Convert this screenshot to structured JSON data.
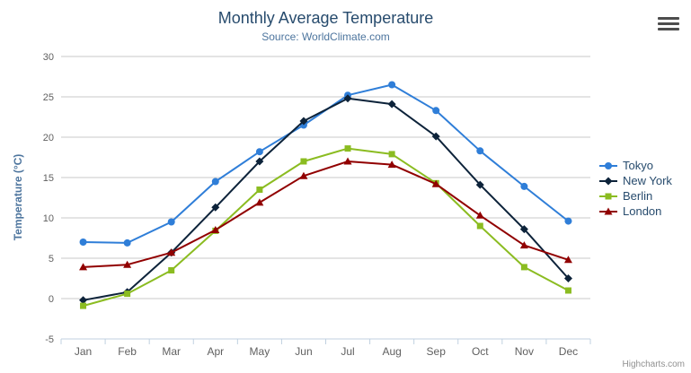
{
  "header": {
    "title": "Monthly Average Temperature",
    "subtitle": "Source: WorldClimate.com"
  },
  "credits_label": "Highcharts.com",
  "menu_icon": "hamburger-icon",
  "chart_data": {
    "type": "line",
    "title": "Monthly Average Temperature",
    "subtitle": "Source: WorldClimate.com",
    "xlabel": "",
    "ylabel": "Temperature (°C)",
    "categories": [
      "Jan",
      "Feb",
      "Mar",
      "Apr",
      "May",
      "Jun",
      "Jul",
      "Aug",
      "Sep",
      "Oct",
      "Nov",
      "Dec"
    ],
    "ylim": [
      -5,
      30
    ],
    "y_ticks": [
      -5,
      0,
      5,
      10,
      15,
      20,
      25,
      30
    ],
    "grid": true,
    "legend_position": "right",
    "series": [
      {
        "name": "Tokyo",
        "marker": "circle",
        "color": "#2f7ed8",
        "values": [
          7.0,
          6.9,
          9.5,
          14.5,
          18.2,
          21.5,
          25.2,
          26.5,
          23.3,
          18.3,
          13.9,
          9.6
        ]
      },
      {
        "name": "New York",
        "marker": "diamond",
        "color": "#0d233a",
        "values": [
          -0.2,
          0.8,
          5.7,
          11.3,
          17.0,
          22.0,
          24.8,
          24.1,
          20.1,
          14.1,
          8.6,
          2.5
        ]
      },
      {
        "name": "Berlin",
        "marker": "square",
        "color": "#8bbc21",
        "values": [
          -0.9,
          0.6,
          3.5,
          8.4,
          13.5,
          17.0,
          18.6,
          17.9,
          14.3,
          9.0,
          3.9,
          1.0
        ]
      },
      {
        "name": "London",
        "marker": "triangle",
        "color": "#910000",
        "values": [
          3.9,
          4.2,
          5.7,
          8.5,
          11.9,
          15.2,
          17.0,
          16.6,
          14.2,
          10.3,
          6.6,
          4.8
        ]
      }
    ],
    "colors": {
      "title": "#274b6d",
      "subtitle": "#4d759e",
      "axis_title": "#4d759e",
      "tick_label": "#606060",
      "gridline": "#c9c9c9",
      "axis_line": "#c0d0e0",
      "legend_text": "#274b6d",
      "credits": "#909090"
    }
  }
}
